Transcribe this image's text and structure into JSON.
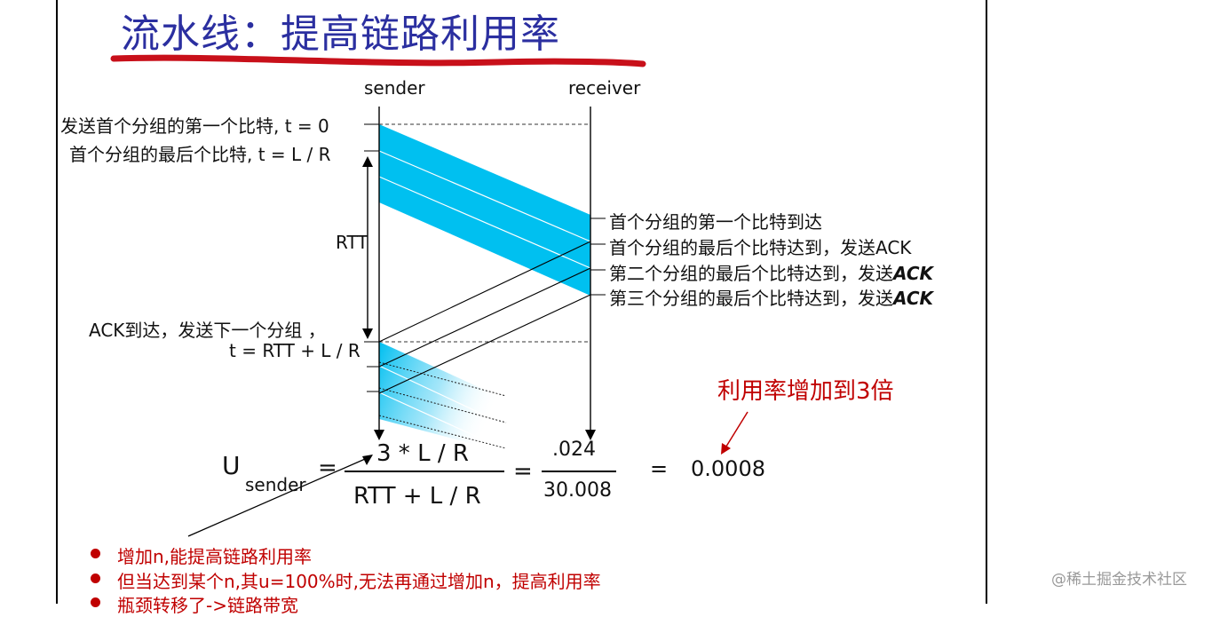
{
  "title": "流水线：提高链路利用率",
  "diagram": {
    "sender": "sender",
    "receiver": "receiver",
    "rtt": "RTT",
    "left_labels": [
      "发送首个分组的第一个比特, t = 0",
      "首个分组的最后个比特, t = L / R",
      "ACK到达，发送下一个分组 ，",
      "t = RTT + L / R"
    ],
    "right_labels": [
      "首个分组的第一个比特到达",
      "首个分组的最后个比特达到，发送ACK",
      "第二个分组的最后个比特达到，发送",
      "第三个分组的最后个比特达到，发送"
    ],
    "ack_italic": "ACK",
    "colors": {
      "packet": "#00c0f0",
      "title": "#2b2fa0",
      "accent": "#c00000"
    }
  },
  "formula": {
    "u": "U",
    "sender_sub": "sender",
    "eq": "=",
    "numerator": "3 * L / R",
    "denominator": "RTT + L / R",
    "num2": ".024",
    "den2": "30.008",
    "result": "0.0008"
  },
  "annotation": "利用率增加到3倍",
  "bullets": [
    "增加n,能提高链路利用率",
    "但当达到某个n,其u=100%时,无法再通过增加n，提高利用率",
    "瓶颈转移了->链路带宽"
  ],
  "watermark": "@稀土掘金技术社区"
}
